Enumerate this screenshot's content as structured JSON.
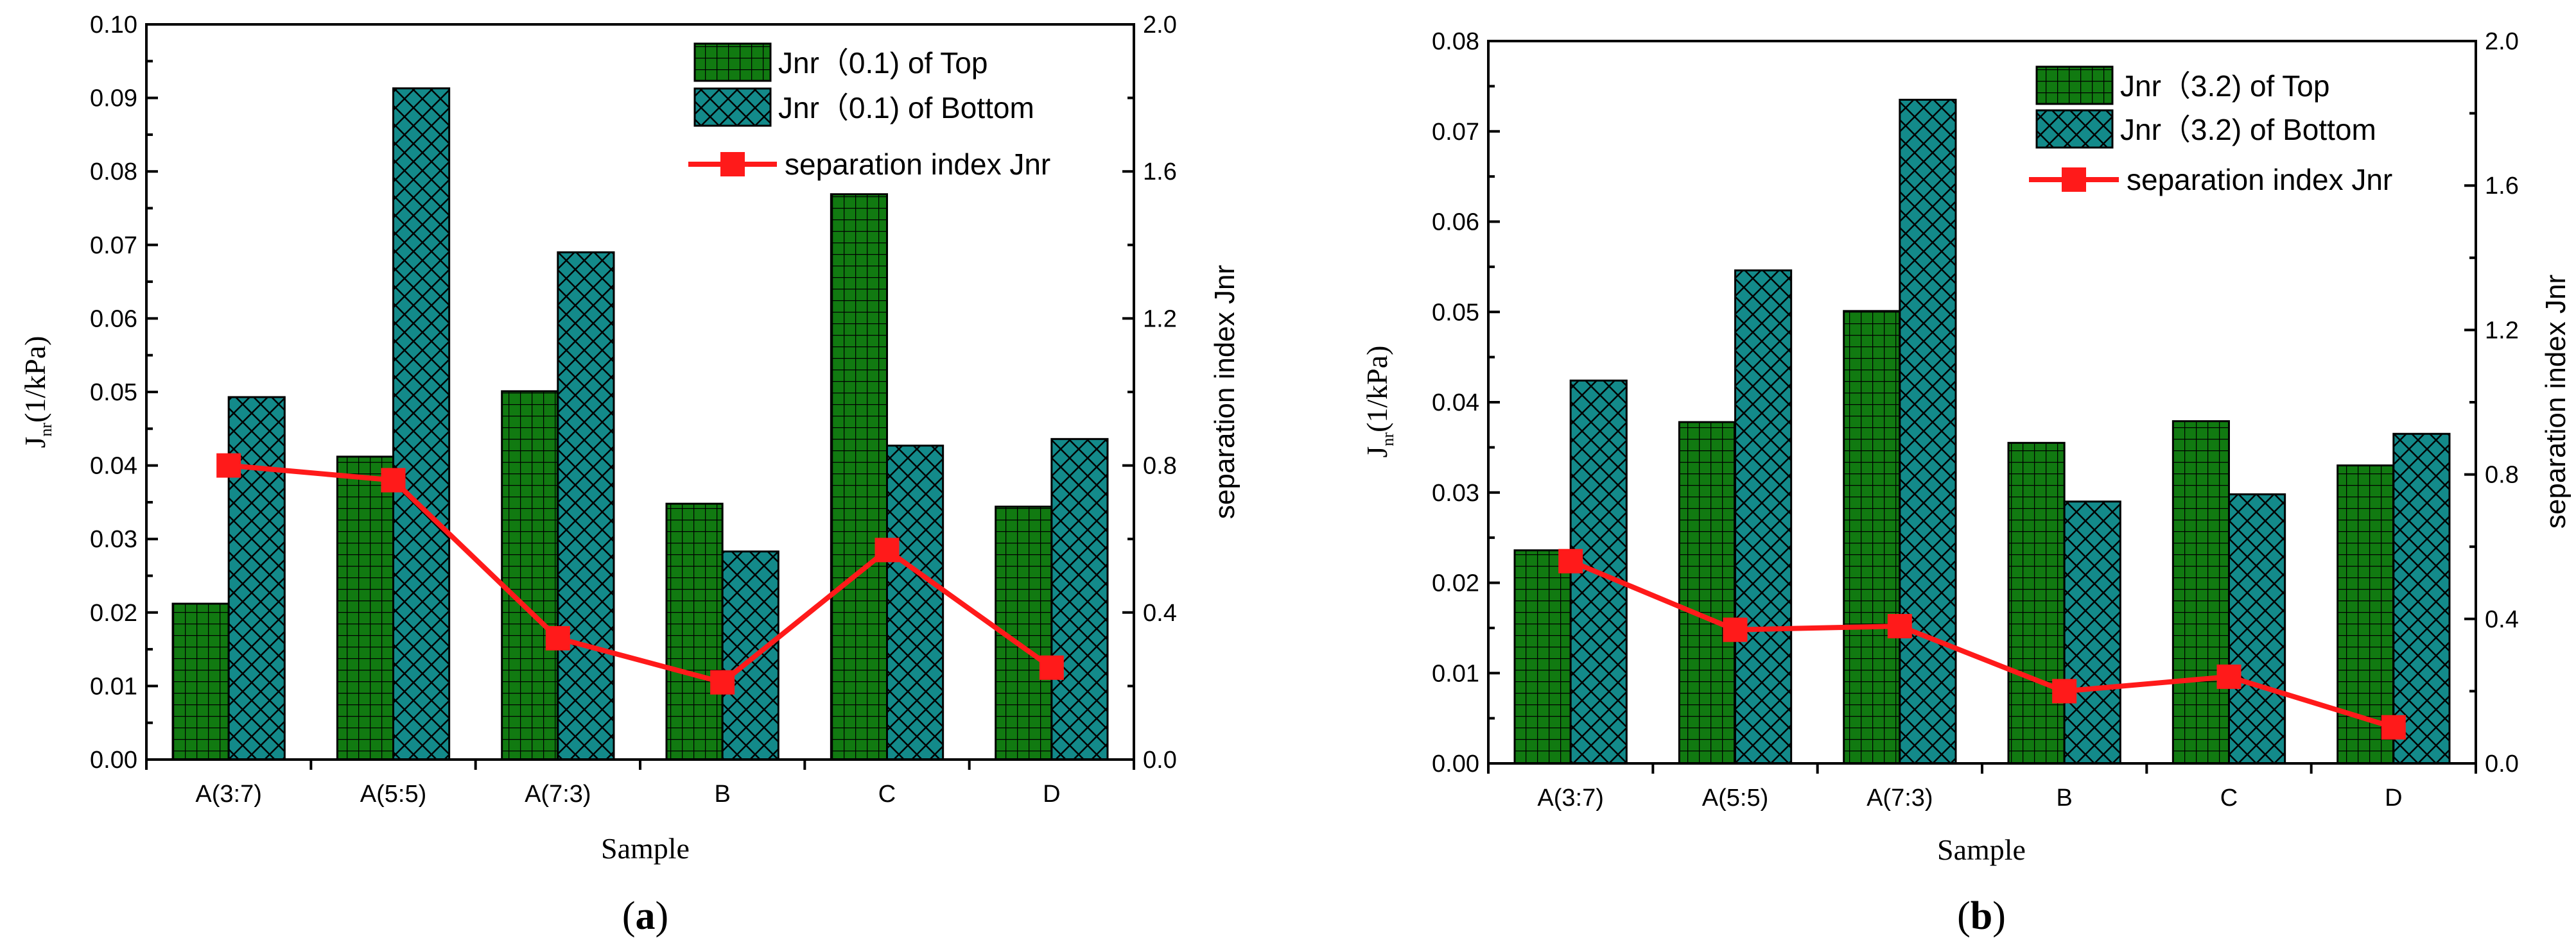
{
  "colors": {
    "top_fill": "#117a11",
    "bottom_fill": "#138a8a",
    "line": "#ff1a1a"
  },
  "chart_data": [
    {
      "type": "bar",
      "panel_label_open": "(",
      "panel_label_letter": "a",
      "panel_label_close": ")",
      "categories": [
        "A(3:7)",
        "A(5:5)",
        "A(7:3)",
        "B",
        "C",
        "D"
      ],
      "xlabel": "Sample",
      "ylabel_main": "J",
      "ylabel_sub": "nr",
      "ylabel_rest": "(1/kPa)",
      "y2label": "separation index Jnr",
      "ylim": [
        0,
        0.1
      ],
      "yticks": [
        "0.00",
        "0.01",
        "0.02",
        "0.03",
        "0.04",
        "0.05",
        "0.06",
        "0.07",
        "0.08",
        "0.09",
        "0.10"
      ],
      "y2lim": [
        0,
        2.0
      ],
      "y2ticks": [
        "0.0",
        "0.4",
        "0.8",
        "1.2",
        "1.6",
        "2.0"
      ],
      "series": [
        {
          "name": "Jnr（0.1) of Top",
          "axis": "left",
          "values": [
            0.0212,
            0.0412,
            0.0501,
            0.0348,
            0.0769,
            0.0344
          ]
        },
        {
          "name": "Jnr（0.1) of Bottom",
          "axis": "left",
          "values": [
            0.0493,
            0.0913,
            0.069,
            0.0283,
            0.0427,
            0.0436
          ]
        },
        {
          "name": "separation index Jnr",
          "axis": "right",
          "type": "line",
          "values": [
            0.8,
            0.76,
            0.33,
            0.21,
            0.57,
            0.25
          ]
        }
      ]
    },
    {
      "type": "bar",
      "panel_label_open": "(",
      "panel_label_letter": "b",
      "panel_label_close": ")",
      "categories": [
        "A(3:7)",
        "A(5:5)",
        "A(7:3)",
        "B",
        "C",
        "D"
      ],
      "xlabel": "Sample",
      "ylabel_main": "J",
      "ylabel_sub": "nr",
      "ylabel_rest": "(1/kPa)",
      "y2label": "separation index Jnr",
      "ylim": [
        0,
        0.08
      ],
      "yticks": [
        "0.00",
        "0.01",
        "0.02",
        "0.03",
        "0.04",
        "0.05",
        "0.06",
        "0.07",
        "0.08"
      ],
      "y2lim": [
        0,
        2.0
      ],
      "y2ticks": [
        "0.0",
        "0.4",
        "0.8",
        "1.2",
        "1.6",
        "2.0"
      ],
      "series": [
        {
          "name": "Jnr（3.2) of Top",
          "axis": "left",
          "values": [
            0.0236,
            0.0378,
            0.0501,
            0.0355,
            0.0379,
            0.033
          ]
        },
        {
          "name": "Jnr（3.2) of Bottom",
          "axis": "left",
          "values": [
            0.0424,
            0.0546,
            0.0735,
            0.029,
            0.0298,
            0.0365
          ]
        },
        {
          "name": "separation index Jnr",
          "axis": "right",
          "type": "line",
          "values": [
            0.56,
            0.37,
            0.38,
            0.2,
            0.24,
            0.1
          ]
        }
      ]
    }
  ]
}
